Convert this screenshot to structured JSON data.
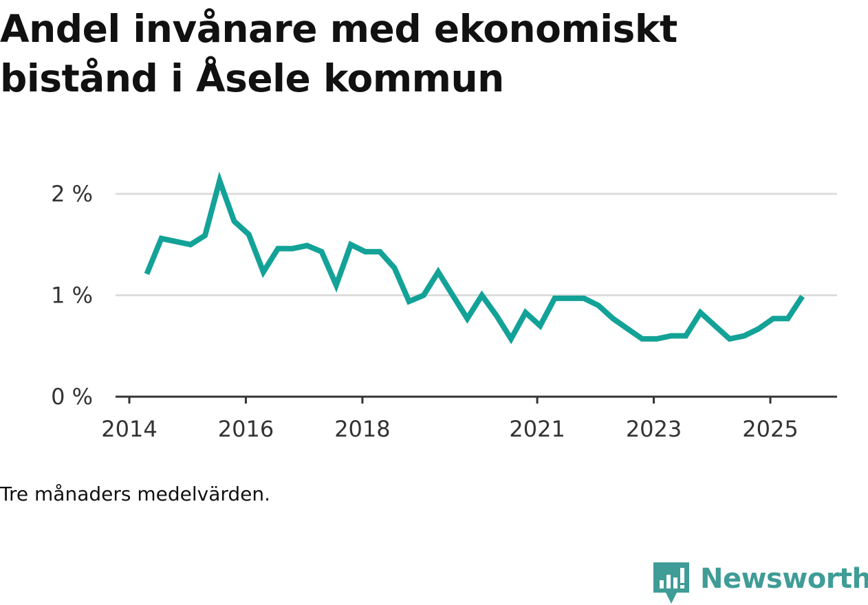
{
  "title": "Andel invånare med ekonomiskt bistånd i Åsele kommun",
  "caption": "Tre månaders medelvärden.",
  "brand": {
    "name": "Newsworthy",
    "color": "#3f9c97",
    "icon": "bar-chart-speech-bubble-icon"
  },
  "colors": {
    "line": "#13a297",
    "grid": "#dddddd",
    "axis": "#333333"
  },
  "chart_data": {
    "type": "line",
    "title": "Andel invånare med ekonomiskt bistånd i Åsele kommun",
    "xlabel": "",
    "ylabel": "",
    "ylim": [
      0,
      2.05
    ],
    "xlim": [
      2014,
      2026.2
    ],
    "y_ticks": [
      0,
      1,
      2
    ],
    "y_tick_labels": [
      "0 %",
      "1 %",
      "2 %"
    ],
    "x_ticks": [
      2014,
      2016,
      2018,
      2021,
      2023,
      2025
    ],
    "x_tick_labels": [
      "2014",
      "2016",
      "2018",
      "2021",
      "2023",
      "2025"
    ],
    "series": [
      {
        "name": "Andel invånare med ekonomiskt bistånd",
        "x": [
          2014.3,
          2014.55,
          2014.8,
          2015.05,
          2015.3,
          2015.55,
          2015.8,
          2016.05,
          2016.3,
          2016.55,
          2016.8,
          2017.05,
          2017.3,
          2017.55,
          2017.8,
          2018.05,
          2018.3,
          2018.55,
          2018.8,
          2019.05,
          2019.3,
          2019.55,
          2019.8,
          2020.05,
          2020.3,
          2020.55,
          2020.8,
          2021.05,
          2021.3,
          2021.55,
          2021.8,
          2022.05,
          2022.3,
          2022.55,
          2022.8,
          2023.05,
          2023.3,
          2023.55,
          2023.8,
          2024.05,
          2024.3,
          2024.55,
          2024.8,
          2025.05,
          2025.3,
          2025.55
        ],
        "values": [
          1.21,
          1.56,
          1.53,
          1.5,
          1.59,
          2.13,
          1.73,
          1.6,
          1.23,
          1.46,
          1.46,
          1.49,
          1.43,
          1.1,
          1.5,
          1.43,
          1.43,
          1.27,
          0.94,
          1.0,
          1.23,
          1.0,
          0.77,
          1.0,
          0.8,
          0.57,
          0.83,
          0.7,
          0.97,
          0.97,
          0.97,
          0.9,
          0.77,
          0.67,
          0.57,
          0.57,
          0.6,
          0.6,
          0.83,
          0.7,
          0.57,
          0.6,
          0.67,
          0.77,
          0.77,
          0.99
        ]
      }
    ]
  }
}
